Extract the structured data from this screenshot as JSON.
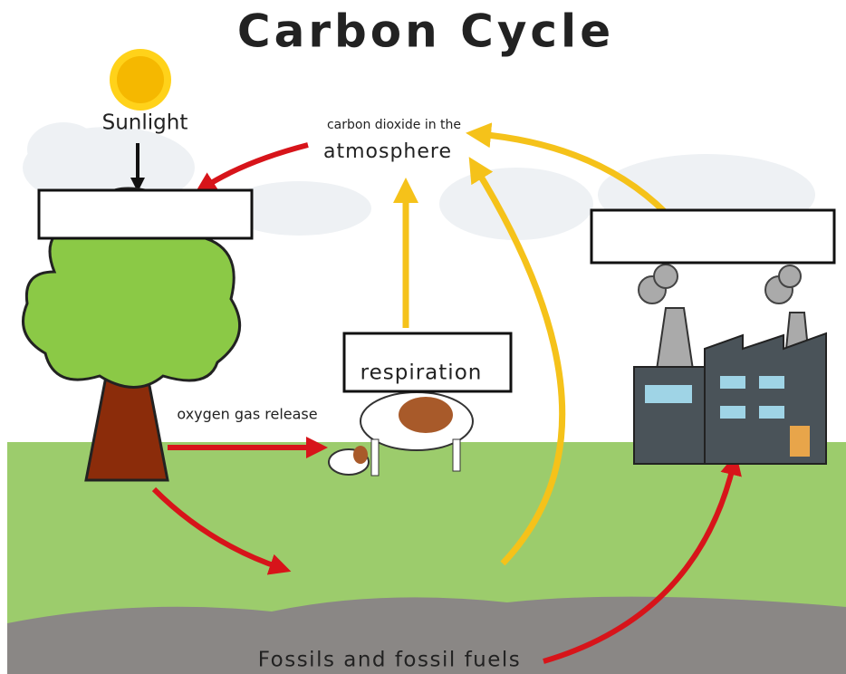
{
  "title": "Carbon Cycle",
  "labels": {
    "sunlight": "Sunlight",
    "co2_line1": "carbon dioxide in the",
    "co2_line2": "atmosphere",
    "respiration": "respiration",
    "oxygen": "oxygen gas release",
    "fossils": "Fossils and fossil fuels"
  }
}
